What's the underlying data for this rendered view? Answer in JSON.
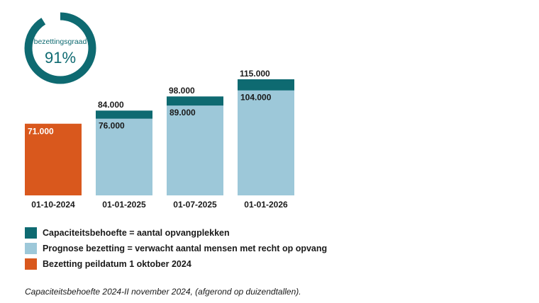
{
  "colors": {
    "capacity": "#0e6a71",
    "forecast": "#9dc8d9",
    "occupancy": "#d9581d",
    "text": "#1a1a1a"
  },
  "gauge": {
    "label": "bezettingsgraad",
    "value_text": "91%",
    "fraction": 0.91
  },
  "chart_data": {
    "type": "bar",
    "categories": [
      "01-10-2024",
      "01-01-2025",
      "01-07-2025",
      "01-01-2026"
    ],
    "series": [
      {
        "name": "Bezetting peildatum 1 oktober 2024",
        "values": [
          71000,
          null,
          null,
          null
        ]
      },
      {
        "name": "Prognose bezetting = verwacht aantal mensen met recht op opvang",
        "values": [
          null,
          76000,
          89000,
          104000
        ]
      },
      {
        "name": "Capaciteitsbehoefte = aantal opvangplekken",
        "values": [
          null,
          84000,
          98000,
          115000
        ]
      }
    ],
    "value_labels": {
      "occupancy": [
        "71.000",
        "",
        "",
        ""
      ],
      "forecast": [
        "",
        "76.000",
        "89.000",
        "104.000"
      ],
      "capacity": [
        "",
        "84.000",
        "98.000",
        "115.000"
      ]
    },
    "ylim": [
      0,
      115000
    ],
    "stacked_overlay": true,
    "legend_position": "bottom-left"
  },
  "legend": [
    {
      "label": "Capaciteitsbehoefte = aantal opvangplekken",
      "color_key": "capacity"
    },
    {
      "label": "Prognose bezetting = verwacht aantal mensen met recht op opvang",
      "color_key": "forecast"
    },
    {
      "label": "Bezetting peildatum 1 oktober 2024",
      "color_key": "occupancy"
    }
  ],
  "footnote": "Capaciteitsbehoefte 2024-II november 2024, (afgerond op duizendtallen)."
}
